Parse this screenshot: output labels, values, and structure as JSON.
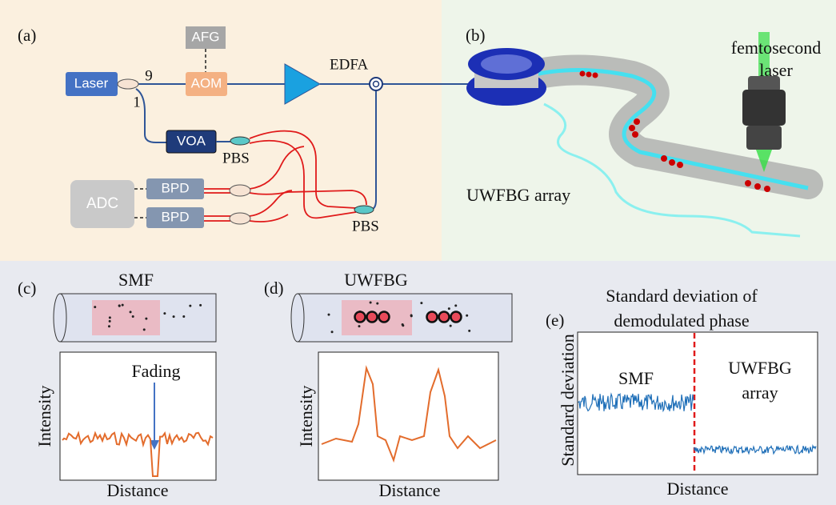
{
  "panel_a": {
    "label": "(a)",
    "afg": "AFG",
    "laser": "Laser",
    "aom": "AOM",
    "edfa": "EDFA",
    "port_9": "9",
    "port_1": "1",
    "voa": "VOA",
    "pbs_top": "PBS",
    "pbs_bottom": "PBS",
    "adc": "ADC",
    "bpd_1": "BPD",
    "bpd_2": "BPD"
  },
  "panel_b": {
    "label": "(b)",
    "laser_line_1": "femtosecond",
    "laser_line_2": "laser",
    "array": "UWFBG array"
  },
  "panel_c": {
    "label": "(c)",
    "title": "SMF",
    "annotation": "Fading",
    "y_label": "Intensity",
    "x_label": "Distance"
  },
  "panel_d": {
    "label": "(d)",
    "title": "UWFBG",
    "y_label": "Intensity",
    "x_label": "Distance"
  },
  "panel_e": {
    "label": "(e)",
    "title_line_1": "Standard deviation of",
    "title_line_2": "demodulated phase",
    "left_region": "SMF",
    "right_region_line_1": "UWFBG",
    "right_region_line_2": "array",
    "y_label": "Standard deviation",
    "x_label": "Distance"
  }
}
